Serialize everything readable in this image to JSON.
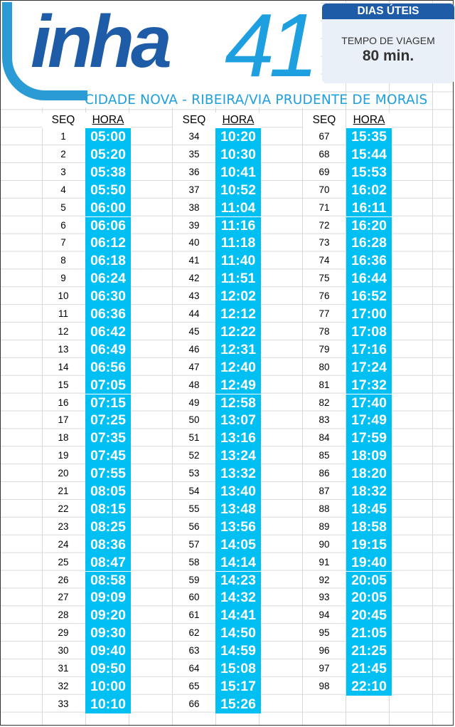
{
  "header": {
    "logo_word": "inha",
    "logo_number": "41",
    "route": "CIDADE NOVA - RIBEIRA/VIA PRUDENTE DE MORAIS"
  },
  "info": {
    "day_type": "DIAS ÚTEIS",
    "travel_time_label": "TEMPO DE VIAGEM",
    "travel_time_value": "80 min."
  },
  "colors": {
    "hora_background": "#00bff3",
    "logo_dark": "#1f5ca8",
    "logo_light": "#1d9fe0"
  },
  "table": {
    "seq_header": "SEQ",
    "hora_header": "HORA",
    "columns": [
      [
        [
          "1",
          "05:00"
        ],
        [
          "2",
          "05:20"
        ],
        [
          "3",
          "05:38"
        ],
        [
          "4",
          "05:50"
        ],
        [
          "5",
          "06:00"
        ],
        [
          "6",
          "06:06"
        ],
        [
          "7",
          "06:12"
        ],
        [
          "8",
          "06:18"
        ],
        [
          "9",
          "06:24"
        ],
        [
          "10",
          "06:30"
        ],
        [
          "11",
          "06:36"
        ],
        [
          "12",
          "06:42"
        ],
        [
          "13",
          "06:49"
        ],
        [
          "14",
          "06:56"
        ],
        [
          "15",
          "07:05"
        ],
        [
          "16",
          "07:15"
        ],
        [
          "17",
          "07:25"
        ],
        [
          "18",
          "07:35"
        ],
        [
          "19",
          "07:45"
        ],
        [
          "20",
          "07:55"
        ],
        [
          "21",
          "08:05"
        ],
        [
          "22",
          "08:15"
        ],
        [
          "23",
          "08:25"
        ],
        [
          "24",
          "08:36"
        ],
        [
          "25",
          "08:47"
        ],
        [
          "26",
          "08:58"
        ],
        [
          "27",
          "09:09"
        ],
        [
          "28",
          "09:20"
        ],
        [
          "29",
          "09:30"
        ],
        [
          "30",
          "09:40"
        ],
        [
          "31",
          "09:50"
        ],
        [
          "32",
          "10:00"
        ],
        [
          "33",
          "10:10"
        ]
      ],
      [
        [
          "34",
          "10:20"
        ],
        [
          "35",
          "10:30"
        ],
        [
          "36",
          "10:41"
        ],
        [
          "37",
          "10:52"
        ],
        [
          "38",
          "11:04"
        ],
        [
          "39",
          "11:16"
        ],
        [
          "40",
          "11:18"
        ],
        [
          "41",
          "11:40"
        ],
        [
          "42",
          "11:51"
        ],
        [
          "43",
          "12:02"
        ],
        [
          "44",
          "12:12"
        ],
        [
          "45",
          "12:22"
        ],
        [
          "46",
          "12:31"
        ],
        [
          "47",
          "12:40"
        ],
        [
          "48",
          "12:49"
        ],
        [
          "49",
          "12:58"
        ],
        [
          "50",
          "13:07"
        ],
        [
          "51",
          "13:16"
        ],
        [
          "52",
          "13:24"
        ],
        [
          "53",
          "13:32"
        ],
        [
          "54",
          "13:40"
        ],
        [
          "55",
          "13:48"
        ],
        [
          "56",
          "13:56"
        ],
        [
          "57",
          "14:05"
        ],
        [
          "58",
          "14:14"
        ],
        [
          "59",
          "14:23"
        ],
        [
          "60",
          "14:32"
        ],
        [
          "61",
          "14:41"
        ],
        [
          "62",
          "14:50"
        ],
        [
          "63",
          "14:59"
        ],
        [
          "64",
          "15:08"
        ],
        [
          "65",
          "15:17"
        ],
        [
          "66",
          "15:26"
        ]
      ],
      [
        [
          "67",
          "15:35"
        ],
        [
          "68",
          "15:44"
        ],
        [
          "69",
          "15:53"
        ],
        [
          "70",
          "16:02"
        ],
        [
          "71",
          "16:11"
        ],
        [
          "72",
          "16:20"
        ],
        [
          "73",
          "16:28"
        ],
        [
          "74",
          "16:36"
        ],
        [
          "75",
          "16:44"
        ],
        [
          "76",
          "16:52"
        ],
        [
          "77",
          "17:00"
        ],
        [
          "78",
          "17:08"
        ],
        [
          "79",
          "17:16"
        ],
        [
          "80",
          "17:24"
        ],
        [
          "81",
          "17:32"
        ],
        [
          "82",
          "17:40"
        ],
        [
          "83",
          "17:49"
        ],
        [
          "84",
          "17:59"
        ],
        [
          "85",
          "18:09"
        ],
        [
          "86",
          "18:20"
        ],
        [
          "87",
          "18:32"
        ],
        [
          "88",
          "18:45"
        ],
        [
          "89",
          "18:58"
        ],
        [
          "90",
          "19:15"
        ],
        [
          "91",
          "19:40"
        ],
        [
          "92",
          "20:05"
        ],
        [
          "93",
          "20:05"
        ],
        [
          "94",
          "20:45"
        ],
        [
          "95",
          "21:05"
        ],
        [
          "96",
          "21:25"
        ],
        [
          "97",
          "21:45"
        ],
        [
          "98",
          "22:10"
        ]
      ]
    ]
  }
}
